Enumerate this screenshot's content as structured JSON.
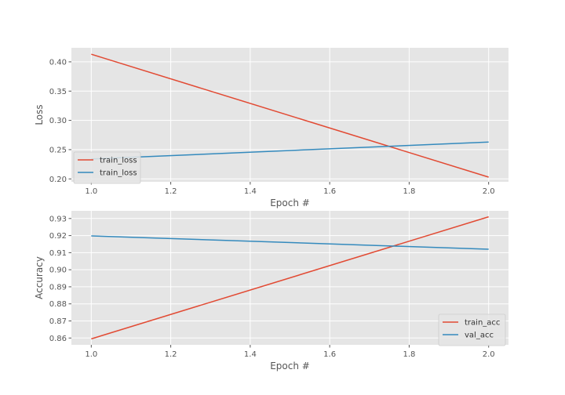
{
  "chart_data": [
    {
      "type": "line",
      "xlabel": "Epoch #",
      "ylabel": "Loss",
      "xlim": [
        0.95,
        2.05
      ],
      "ylim": [
        0.195,
        0.424
      ],
      "xticks": [
        "1.0",
        "1.2",
        "1.4",
        "1.6",
        "1.8",
        "2.0"
      ],
      "yticks": [
        "0.20",
        "0.25",
        "0.30",
        "0.35",
        "0.40"
      ],
      "grid": true,
      "legend": "lower-left",
      "series": [
        {
          "name": "train_loss",
          "color": "#E24A33",
          "x": [
            1.0,
            2.0
          ],
          "y": [
            0.413,
            0.203
          ]
        },
        {
          "name": "train_loss",
          "color": "#348ABD",
          "x": [
            1.0,
            2.0
          ],
          "y": [
            0.234,
            0.263
          ]
        }
      ]
    },
    {
      "type": "line",
      "xlabel": "Epoch #",
      "ylabel": "Accuracy",
      "xlim": [
        0.95,
        2.05
      ],
      "ylim": [
        0.856,
        0.9345
      ],
      "xticks": [
        "1.0",
        "1.2",
        "1.4",
        "1.6",
        "1.8",
        "2.0"
      ],
      "yticks": [
        "0.86",
        "0.87",
        "0.88",
        "0.89",
        "0.90",
        "0.91",
        "0.92",
        "0.93"
      ],
      "grid": true,
      "legend": "lower-right",
      "series": [
        {
          "name": "train_acc",
          "color": "#E24A33",
          "x": [
            1.0,
            2.0
          ],
          "y": [
            0.8595,
            0.931
          ]
        },
        {
          "name": "val_acc",
          "color": "#348ABD",
          "x": [
            1.0,
            2.0
          ],
          "y": [
            0.9198,
            0.912
          ]
        }
      ]
    }
  ]
}
